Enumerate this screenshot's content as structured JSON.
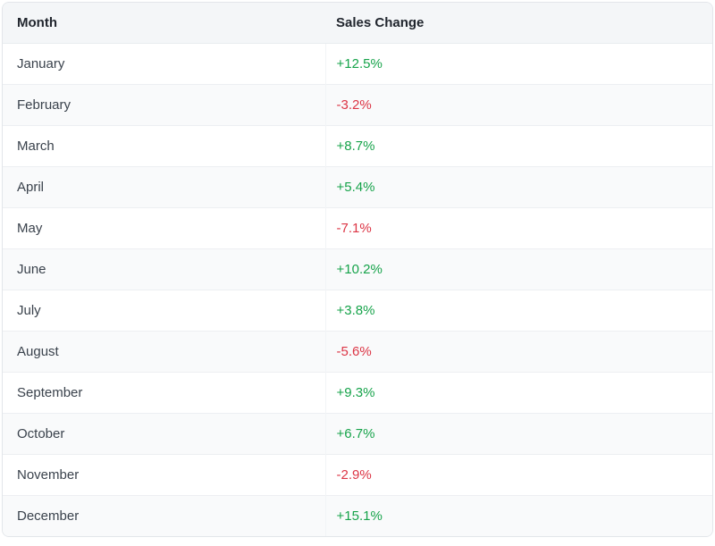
{
  "table": {
    "columns": [
      {
        "label": "Month"
      },
      {
        "label": "Sales Change"
      }
    ],
    "rows": [
      {
        "month": "January",
        "change": "+12.5%",
        "direction": "positive"
      },
      {
        "month": "February",
        "change": "-3.2%",
        "direction": "negative"
      },
      {
        "month": "March",
        "change": "+8.7%",
        "direction": "positive"
      },
      {
        "month": "April",
        "change": "+5.4%",
        "direction": "positive"
      },
      {
        "month": "May",
        "change": "-7.1%",
        "direction": "negative"
      },
      {
        "month": "June",
        "change": "+10.2%",
        "direction": "positive"
      },
      {
        "month": "July",
        "change": "+3.8%",
        "direction": "positive"
      },
      {
        "month": "August",
        "change": "-5.6%",
        "direction": "negative"
      },
      {
        "month": "September",
        "change": "+9.3%",
        "direction": "positive"
      },
      {
        "month": "October",
        "change": "+6.7%",
        "direction": "positive"
      },
      {
        "month": "November",
        "change": "-2.9%",
        "direction": "negative"
      },
      {
        "month": "December",
        "change": "+15.1%",
        "direction": "positive"
      }
    ]
  },
  "colors": {
    "positive": "#16a34a",
    "negative": "#dc3545",
    "header_background": "#f4f6f8",
    "stripe_background": "#f9fafb",
    "border": "#e3e6ea"
  },
  "chart_data": {
    "type": "table",
    "title": "",
    "columns": [
      "Month",
      "Sales Change"
    ],
    "categories": [
      "January",
      "February",
      "March",
      "April",
      "May",
      "June",
      "July",
      "August",
      "September",
      "October",
      "November",
      "December"
    ],
    "values": [
      12.5,
      -3.2,
      8.7,
      5.4,
      -7.1,
      10.2,
      3.8,
      -5.6,
      9.3,
      6.7,
      -2.9,
      15.1
    ],
    "value_unit": "percent",
    "value_format": "signed_percent",
    "positive_color": "#16a34a",
    "negative_color": "#dc3545",
    "layout": "zebra-striped two-column table, header band, rounded top corners"
  }
}
